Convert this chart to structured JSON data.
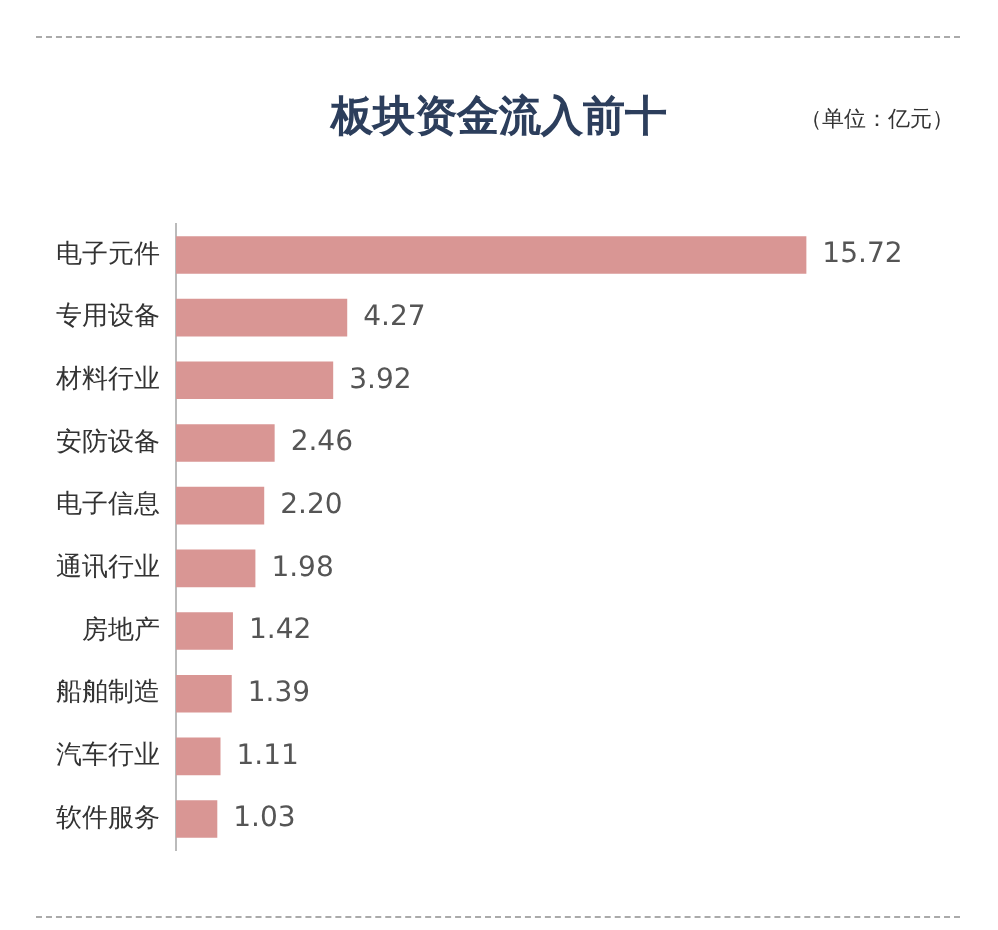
{
  "chart_data": {
    "type": "bar",
    "orientation": "horizontal",
    "title": "板块资金流入前十",
    "annotations": [
      "（单位：亿元）"
    ],
    "categories": [
      "电子元件",
      "专用设备",
      "材料行业",
      "安防设备",
      "电子信息",
      "通讯行业",
      "房地产",
      "船舶制造",
      "汽车行业",
      "软件服务"
    ],
    "values": [
      15.72,
      4.27,
      3.92,
      2.46,
      2.2,
      1.98,
      1.42,
      1.39,
      1.11,
      1.03
    ],
    "value_labels": [
      "15.72",
      "4.27",
      "3.92",
      "2.46",
      "2.20",
      "1.98",
      "1.42",
      "1.39",
      "1.11",
      "1.03"
    ],
    "color": "#d99694",
    "legend": false,
    "tick_labels": "y"
  }
}
